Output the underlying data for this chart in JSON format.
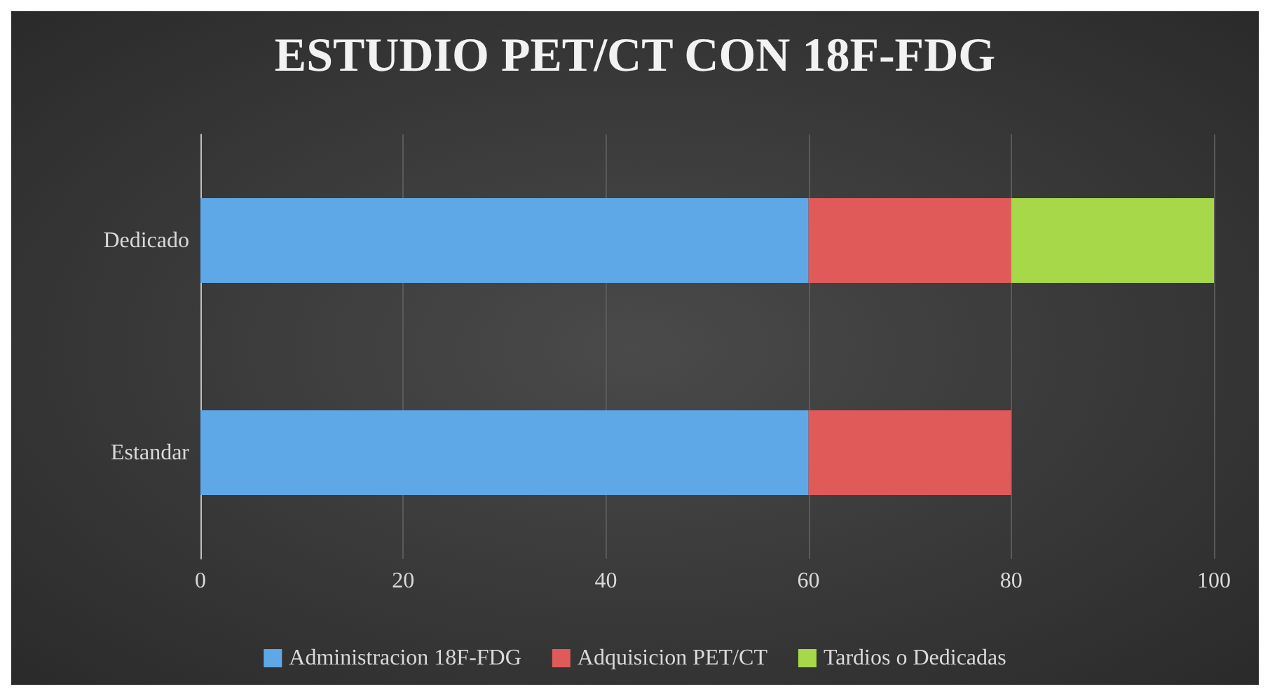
{
  "chart_data": {
    "type": "bar",
    "title": "ESTUDIO PET/CT CON 18F-FDG",
    "orientation": "horizontal",
    "stacked": true,
    "categories": [
      "Dedicado",
      "Estandar"
    ],
    "series": [
      {
        "name": "Administracion 18F-FDG",
        "color": "#5fa8e8",
        "values": [
          60,
          60
        ]
      },
      {
        "name": "Adquisicion PET/CT",
        "color": "#e05a5a",
        "values": [
          20,
          20
        ]
      },
      {
        "name": "Tardios o Dedicadas",
        "color": "#a6d84a",
        "values": [
          20,
          null
        ]
      }
    ],
    "xlim": [
      0,
      100
    ],
    "xticks": [
      0,
      20,
      40,
      60,
      80,
      100
    ],
    "grid": "x",
    "legend": "bottom"
  }
}
